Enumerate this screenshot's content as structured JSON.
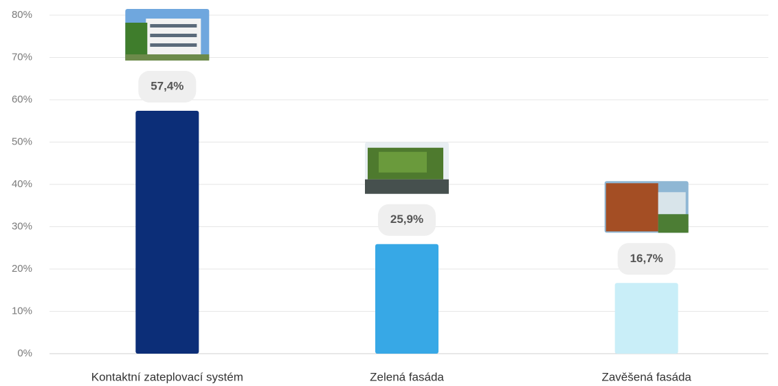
{
  "chart_data": {
    "type": "bar",
    "categories": [
      "Kontaktní zateplovací systém",
      "Zelená fasáda",
      "Zavěšená fasáda"
    ],
    "values": [
      57.4,
      25.9,
      16.7
    ],
    "value_labels": [
      "57,4%",
      "25,9%",
      "16,7%"
    ],
    "colors": [
      "#0c2e78",
      "#37a8e6",
      "#c9eef8"
    ],
    "ylim": [
      0,
      80
    ],
    "yticks": [
      {
        "value": 0,
        "label": "0%"
      },
      {
        "value": 10,
        "label": "10%"
      },
      {
        "value": 20,
        "label": "20%"
      },
      {
        "value": 30,
        "label": "30%"
      },
      {
        "value": 40,
        "label": "40%"
      },
      {
        "value": 50,
        "label": "50%"
      },
      {
        "value": 60,
        "label": "60%"
      },
      {
        "value": 70,
        "label": "70%"
      },
      {
        "value": 80,
        "label": "80%"
      }
    ],
    "grid": true
  }
}
